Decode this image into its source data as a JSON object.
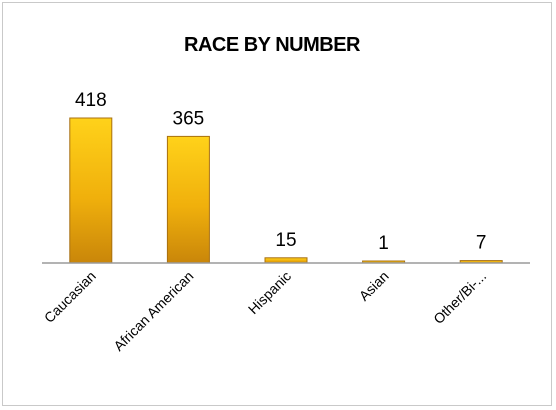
{
  "chart_data": {
    "type": "bar",
    "title": "RACE BY NUMBER",
    "xlabel": "",
    "ylabel": "",
    "categories": [
      "Caucasian",
      "African American",
      "Hispanic",
      "Asian",
      "Other/Bi-..."
    ],
    "values": [
      418,
      365,
      15,
      1,
      7
    ],
    "value_labels": [
      "418",
      "365",
      "15",
      "1",
      "7"
    ],
    "ylim": [
      0,
      418
    ],
    "grid": false,
    "legend": "none",
    "colors": {
      "bar_top": "#ffd21a",
      "bar_bottom": "#c9860a",
      "bar_edge": "#a87010",
      "axis": "#9a9a9a"
    }
  }
}
